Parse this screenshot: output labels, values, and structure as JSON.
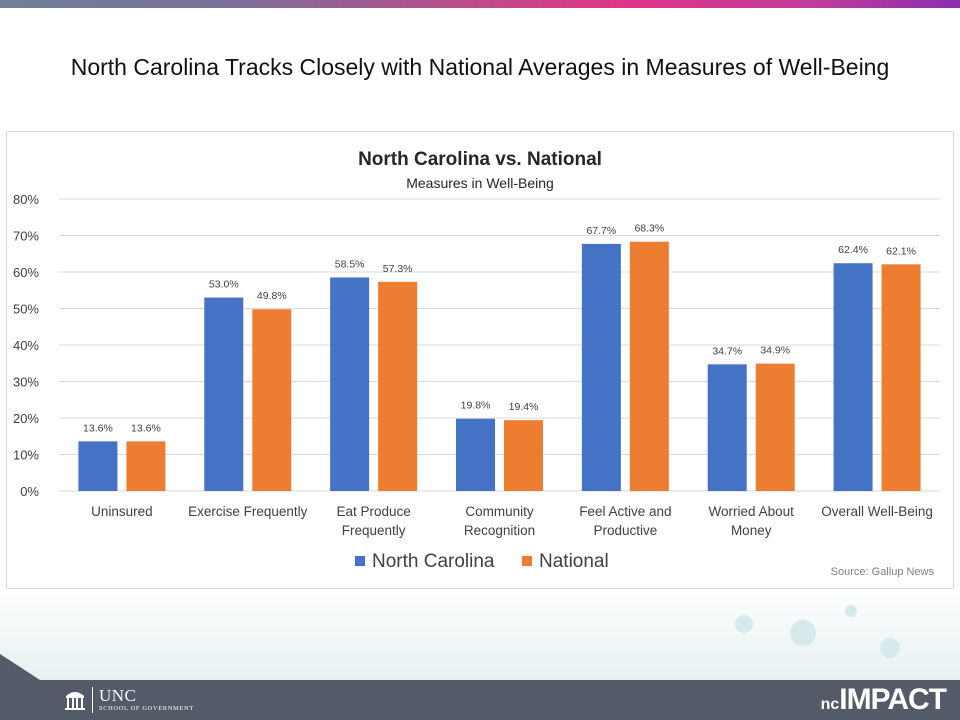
{
  "slide": {
    "title": "North Carolina Tracks Closely with National Averages in Measures of Well-Being"
  },
  "footer": {
    "unc_name": "UNC",
    "unc_sub": "SCHOOL OF GOVERNMENT",
    "brand_prefix": "nc",
    "brand_main": "IMPACT"
  },
  "colors": {
    "north_carolina": "#4472c4",
    "national": "#ed7d31",
    "gridline": "#d9d9d9",
    "footer": "#525b67"
  },
  "chart_data": {
    "type": "bar",
    "title": "North Carolina vs. National",
    "subtitle": "Measures in Well-Being",
    "source": "Source: Gallup News",
    "xlabel": "",
    "ylabel": "",
    "ylim": [
      0,
      80
    ],
    "y_ticks": [
      "0%",
      "10%",
      "20%",
      "30%",
      "40%",
      "50%",
      "60%",
      "70%",
      "80%"
    ],
    "grid": true,
    "legend_position": "bottom-center",
    "categories": [
      [
        "Uninsured"
      ],
      [
        "Exercise Frequently"
      ],
      [
        "Eat Produce",
        "Frequently"
      ],
      [
        "Community",
        "Recognition"
      ],
      [
        "Feel Active and",
        "Productive"
      ],
      [
        "Worried About",
        "Money"
      ],
      [
        "Overall Well-Being"
      ]
    ],
    "series": [
      {
        "name": "North Carolina",
        "values": [
          13.6,
          53.0,
          58.5,
          19.8,
          67.7,
          34.7,
          62.4
        ],
        "labels": [
          "13.6%",
          "53.0%",
          "58.5%",
          "19.8%",
          "67.7%",
          "34.7%",
          "62.4%"
        ]
      },
      {
        "name": "National",
        "values": [
          13.6,
          49.8,
          57.3,
          19.4,
          68.3,
          34.9,
          62.1
        ],
        "labels": [
          "13.6%",
          "49.8%",
          "57.3%",
          "19.4%",
          "68.3%",
          "34.9%",
          "62.1%"
        ]
      }
    ]
  }
}
